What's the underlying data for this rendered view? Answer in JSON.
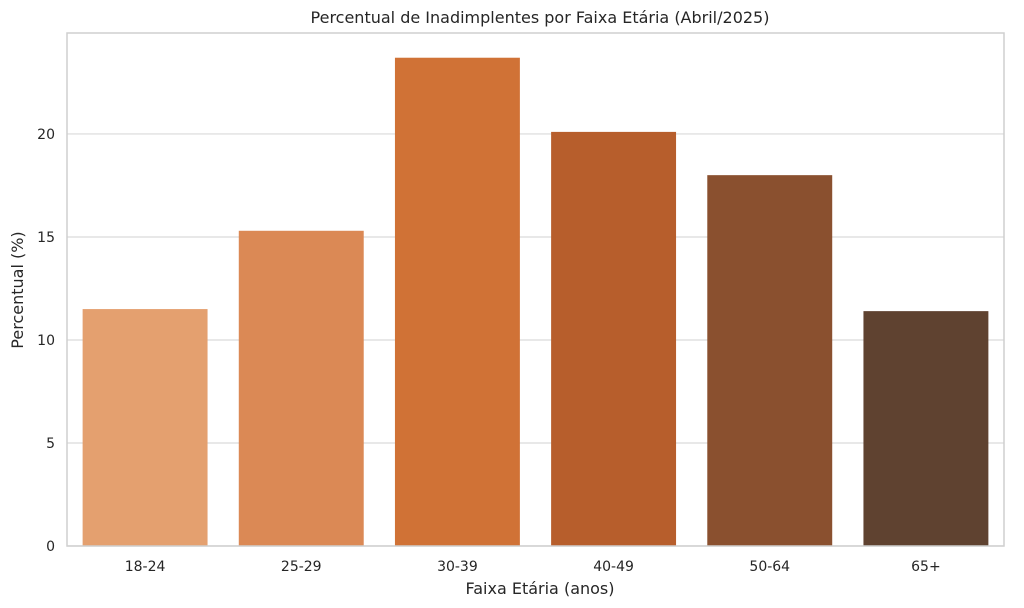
{
  "chart_data": {
    "type": "bar",
    "title": "Percentual de Inadimplentes por Faixa Etária (Abril/2025)",
    "xlabel": "Faixa Etária (anos)",
    "ylabel": "Percentual (%)",
    "categories": [
      "18-24",
      "25-29",
      "30-39",
      "40-49",
      "50-64",
      "65+"
    ],
    "values": [
      11.5,
      15.3,
      23.7,
      20.1,
      18.0,
      11.4
    ],
    "colors": [
      "#e4a06f",
      "#db8955",
      "#d07236",
      "#b75e2c",
      "#8a502f",
      "#5f4230"
    ],
    "ylim": [
      0,
      24.9
    ],
    "yticks": [
      0,
      5,
      10,
      15,
      20
    ],
    "grid": true,
    "legend": "none"
  }
}
